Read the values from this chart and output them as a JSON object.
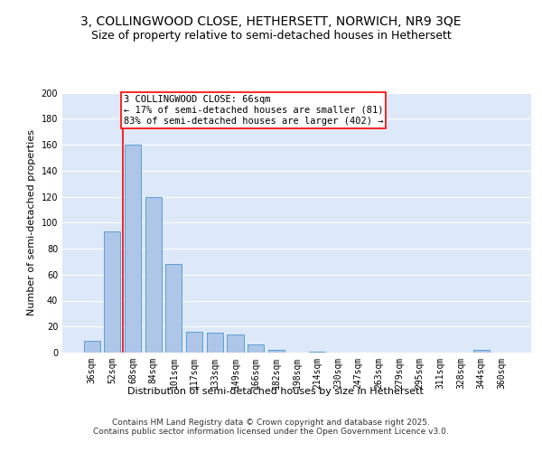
{
  "title_line1": "3, COLLINGWOOD CLOSE, HETHERSETT, NORWICH, NR9 3QE",
  "title_line2": "Size of property relative to semi-detached houses in Hethersett",
  "xlabel": "Distribution of semi-detached houses by size in Hethersett",
  "ylabel": "Number of semi-detached properties",
  "categories": [
    "36sqm",
    "52sqm",
    "68sqm",
    "84sqm",
    "101sqm",
    "117sqm",
    "133sqm",
    "149sqm",
    "166sqm",
    "182sqm",
    "198sqm",
    "214sqm",
    "230sqm",
    "247sqm",
    "263sqm",
    "279sqm",
    "295sqm",
    "311sqm",
    "328sqm",
    "344sqm",
    "360sqm"
  ],
  "values": [
    9,
    93,
    160,
    120,
    68,
    16,
    15,
    14,
    6,
    2,
    0,
    1,
    0,
    0,
    0,
    0,
    0,
    0,
    0,
    2,
    0
  ],
  "bar_color": "#aec6e8",
  "bar_edge_color": "#5a9fd4",
  "vline_x": 1.5,
  "vline_color": "red",
  "annotation_text": "3 COLLINGWOOD CLOSE: 66sqm\n← 17% of semi-detached houses are smaller (81)\n83% of semi-detached houses are larger (402) →",
  "annotation_box_color": "white",
  "annotation_box_edge": "red",
  "ylim": [
    0,
    200
  ],
  "yticks": [
    0,
    20,
    40,
    60,
    80,
    100,
    120,
    140,
    160,
    180,
    200
  ],
  "background_color": "#dde9f8",
  "footer_text": "Contains HM Land Registry data © Crown copyright and database right 2025.\nContains public sector information licensed under the Open Government Licence v3.0.",
  "grid_color": "white",
  "title_fontsize": 10,
  "subtitle_fontsize": 9,
  "axis_label_fontsize": 8,
  "tick_fontsize": 7,
  "annotation_fontsize": 7.5,
  "footer_fontsize": 6.5
}
